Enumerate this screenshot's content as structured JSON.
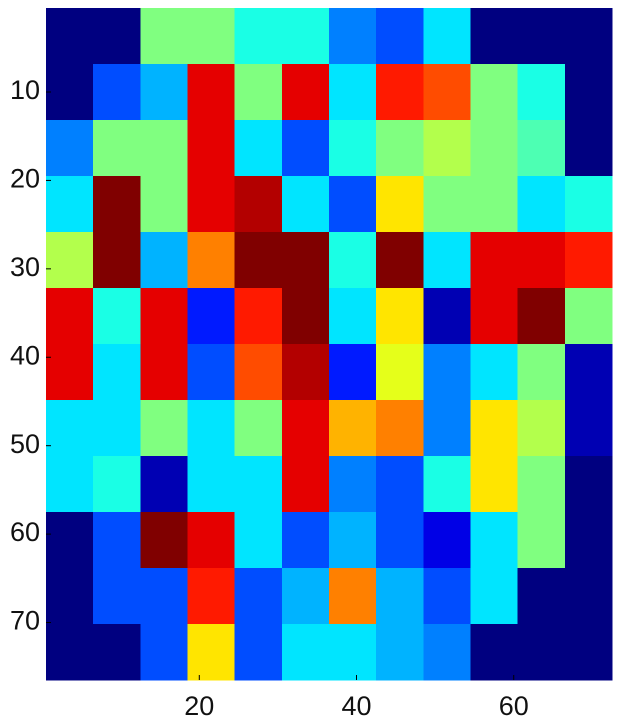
{
  "chart_data": {
    "type": "image",
    "colormap": "jet",
    "clim": [
      0,
      1
    ],
    "xlim": [
      0.5,
      72.5
    ],
    "ylim": [
      0.5,
      76.5
    ],
    "y_reversed": true,
    "xticks": [
      20,
      40,
      60
    ],
    "yticks": [
      10,
      20,
      30,
      40,
      50,
      60,
      70
    ],
    "z": [
      [
        0,
        0,
        0.5,
        0.5,
        0.4,
        0.4,
        0.25,
        0.2,
        0.35,
        0,
        0,
        0
      ],
      [
        0,
        0.2,
        0.3,
        0.9,
        0.5,
        0.9,
        0.35,
        0.85,
        0.8,
        0.5,
        0.4,
        0
      ],
      [
        0.25,
        0.5,
        0.5,
        0.9,
        0.35,
        0.2,
        0.4,
        0.5,
        0.55,
        0.5,
        0.45,
        0
      ],
      [
        0.35,
        1,
        0.5,
        0.9,
        0.95,
        0.35,
        0.2,
        0.65,
        0.5,
        0.5,
        0.35,
        0.4
      ],
      [
        0.55,
        1,
        0.3,
        0.75,
        1,
        1,
        0.4,
        1,
        0.35,
        0.9,
        0.9,
        0.85
      ],
      [
        0.9,
        0.4,
        0.9,
        0.15,
        0.85,
        1,
        0.35,
        0.65,
        0.05,
        0.9,
        1,
        0.5
      ],
      [
        0.9,
        0.35,
        0.9,
        0.2,
        0.8,
        0.95,
        0.15,
        0.6,
        0.25,
        0.35,
        0.5,
        0.05
      ],
      [
        0.35,
        0.35,
        0.5,
        0.35,
        0.5,
        0.9,
        0.7,
        0.75,
        0.25,
        0.65,
        0.55,
        0.05
      ],
      [
        0.35,
        0.4,
        0.05,
        0.35,
        0.35,
        0.9,
        0.25,
        0.2,
        0.4,
        0.65,
        0.5,
        0
      ],
      [
        0,
        0.2,
        1,
        0.9,
        0.35,
        0.2,
        0.3,
        0.2,
        0.1,
        0.35,
        0.5,
        0
      ],
      [
        0,
        0.2,
        0.2,
        0.85,
        0.2,
        0.3,
        0.75,
        0.3,
        0.2,
        0.35,
        0,
        0
      ],
      [
        0,
        0,
        0.2,
        0.65,
        0.2,
        0.35,
        0.35,
        0.3,
        0.25,
        0,
        0,
        0
      ]
    ]
  }
}
